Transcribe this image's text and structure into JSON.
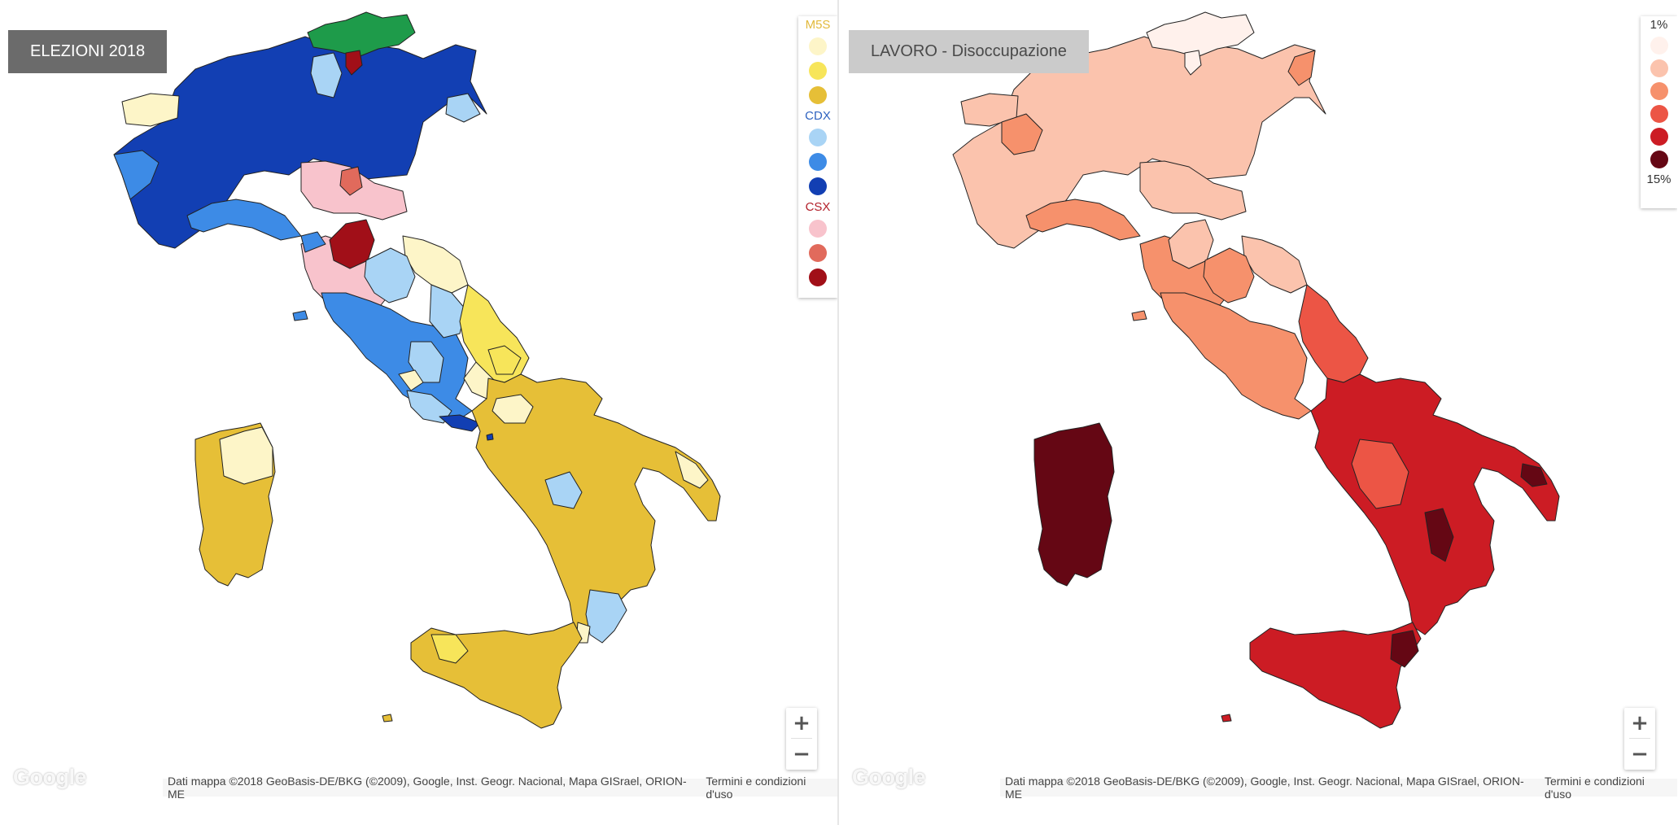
{
  "left_map": {
    "title": "ELEZIONI 2018",
    "legend": {
      "groups": [
        {
          "label": "M5S",
          "label_color": "#e2b93b",
          "colors": [
            "#fdf5c8",
            "#f7e55a",
            "#e6bf37"
          ]
        },
        {
          "label": "CDX",
          "label_color": "#2f63c0",
          "colors": [
            "#a9d4f5",
            "#3d8be6",
            "#123fb3"
          ]
        },
        {
          "label": "CSX",
          "label_color": "#b3202a",
          "colors": [
            "#f8c3cc",
            "#e16a5c",
            "#a10f18"
          ]
        }
      ]
    }
  },
  "right_map": {
    "title": "LAVORO - Disoccupazione",
    "legend": {
      "top_label": "1%",
      "bottom_label": "15%",
      "colors": [
        "#fff1ec",
        "#fbc3ad",
        "#f6916c",
        "#ec5545",
        "#cc1c24",
        "#650714"
      ]
    }
  },
  "zoom": {
    "in_label": "+",
    "out_label": "−"
  },
  "google_logo": "Google",
  "attribution": {
    "data_text": "Dati mappa ©2018 GeoBasis-DE/BKG (©2009), Google, Inst. Geogr. Nacional, Mapa GISrael, ORION-ME",
    "terms_text": "Termini e condizioni d'uso"
  },
  "colors": {
    "green_region": "#1e9b4a",
    "outline": "#222222"
  }
}
